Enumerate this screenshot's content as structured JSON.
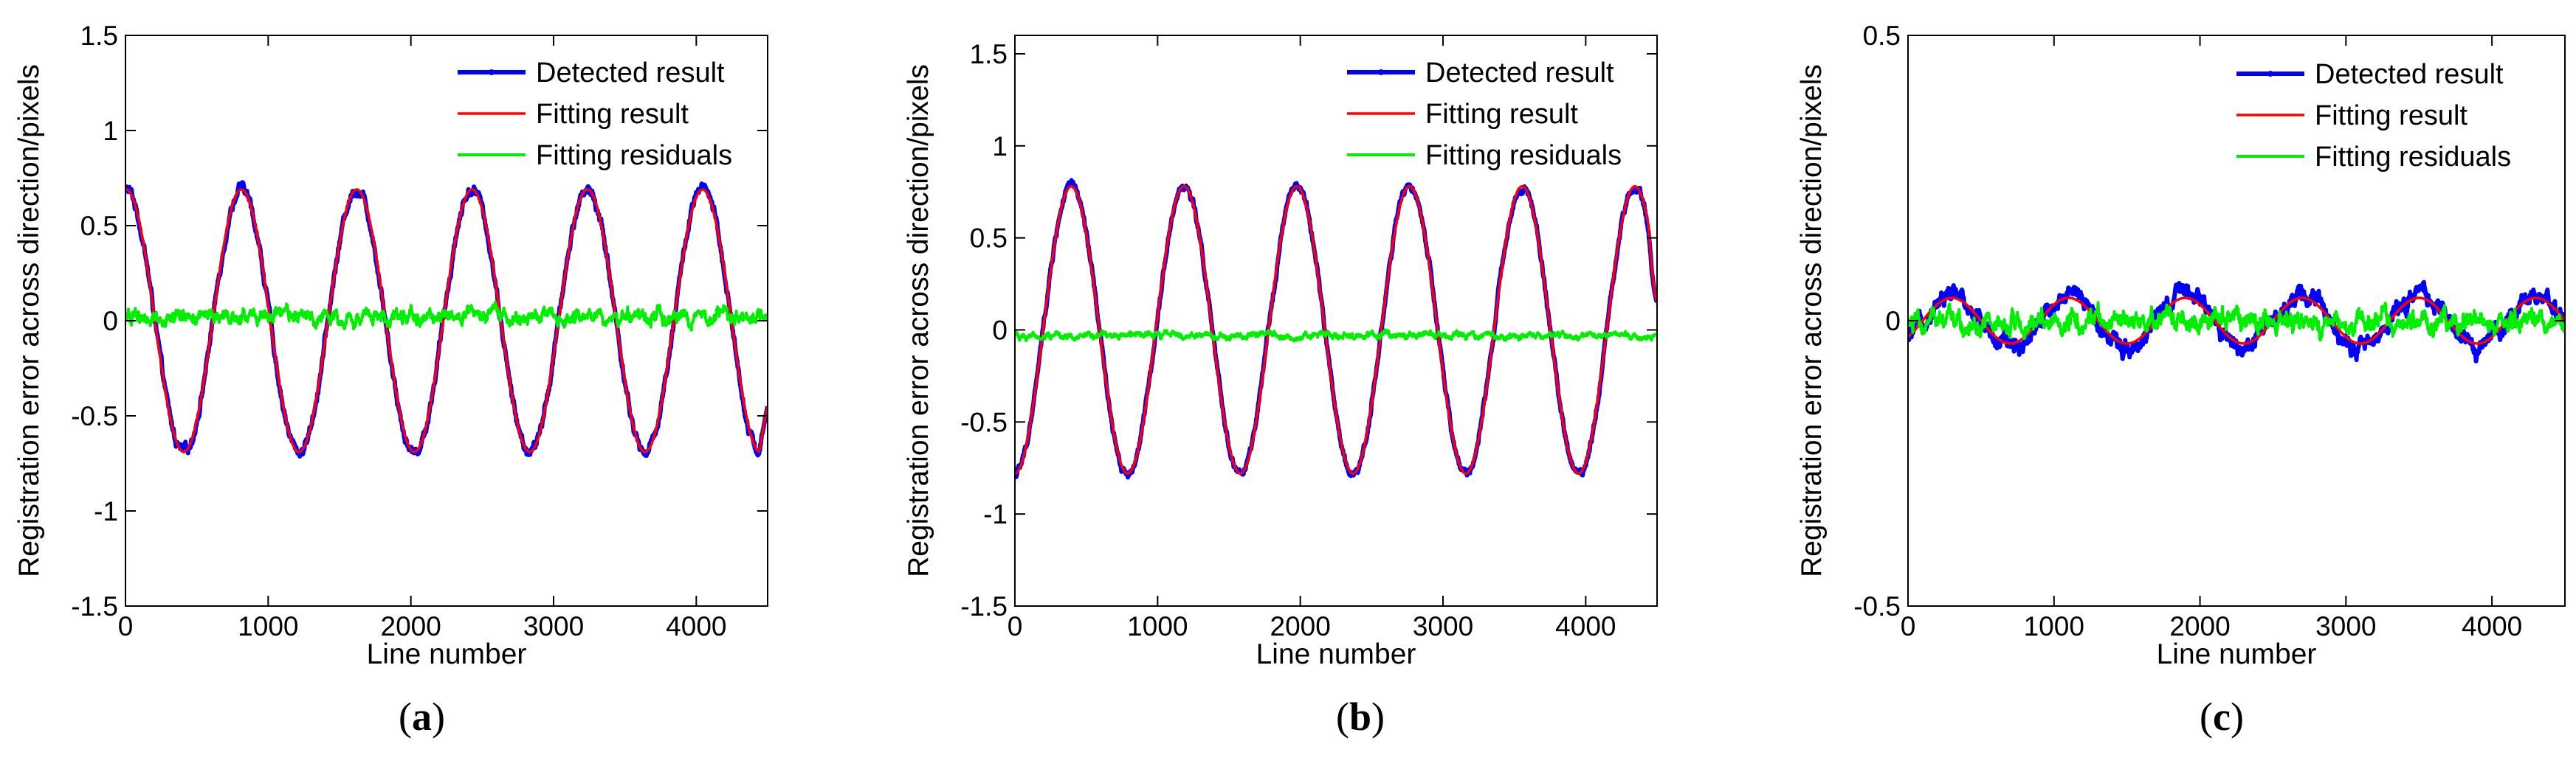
{
  "chart_data": [
    {
      "type": "line",
      "caption_letter": "a",
      "xlabel": "Line number",
      "ylabel": "Registration error across direction/pixels",
      "xlim": [
        0,
        4500
      ],
      "ylim": [
        -1.5,
        1.5
      ],
      "xticks": [
        "0",
        "1000",
        "2000",
        "3000",
        "4000"
      ],
      "xtick_values": [
        0,
        1000,
        2000,
        3000,
        4000
      ],
      "yticks": [
        "-1.5",
        "-1",
        "-0.5",
        "0",
        "0.5",
        "1",
        "1.5"
      ],
      "ytick_values": [
        -1.5,
        -1,
        -0.5,
        0,
        0.5,
        1,
        1.5
      ],
      "legend_position": "top-right",
      "n_points": 4500,
      "series": [
        {
          "name": "Detected result",
          "color": "#0000ff",
          "model": {
            "amplitude": 0.69,
            "period": 808,
            "phase_deg": 88,
            "offset": 0.0,
            "noise": 0.018,
            "end_value": -0.45
          }
        },
        {
          "name": "Fitting result",
          "color": "#ff0000",
          "model": {
            "amplitude": 0.69,
            "period": 808,
            "phase_deg": 88,
            "offset": 0.0,
            "noise": 0.0,
            "end_value": -0.45
          }
        },
        {
          "name": "Fitting residuals",
          "color": "#00ee00",
          "model": {
            "amplitude": 0.0,
            "period": 808,
            "phase_deg": 0,
            "offset": 0.02,
            "noise": 0.025
          }
        }
      ]
    },
    {
      "type": "line",
      "caption_letter": "b",
      "xlabel": "Line number",
      "ylabel": "Registration error across direction/pixels",
      "xlim": [
        0,
        4500
      ],
      "ylim": [
        -1.5,
        1.6
      ],
      "xticks": [
        "0",
        "1000",
        "2000",
        "3000",
        "4000"
      ],
      "xtick_values": [
        0,
        1000,
        2000,
        3000,
        4000
      ],
      "yticks": [
        "-1.5",
        "-1",
        "-0.5",
        "0",
        "0.5",
        "1",
        "1.5"
      ],
      "ytick_values": [
        -1.5,
        -1,
        -0.5,
        0,
        0.5,
        1,
        1.5
      ],
      "legend_position": "top-right",
      "n_points": 4500,
      "series": [
        {
          "name": "Detected result",
          "color": "#0000ff",
          "model": {
            "amplitude": 0.78,
            "period": 790,
            "phase_deg": -90,
            "offset": 0.0,
            "noise": 0.015,
            "end_value": 0.15
          }
        },
        {
          "name": "Fitting result",
          "color": "#ff0000",
          "model": {
            "amplitude": 0.78,
            "period": 790,
            "phase_deg": -90,
            "offset": 0.0,
            "noise": 0.0,
            "end_value": 0.15
          }
        },
        {
          "name": "Fitting residuals",
          "color": "#00ee00",
          "model": {
            "amplitude": 0.0,
            "period": 790,
            "phase_deg": 0,
            "offset": -0.03,
            "noise": 0.012
          }
        }
      ]
    },
    {
      "type": "line",
      "caption_letter": "c",
      "xlabel": "Line number",
      "ylabel": "Registration error across direction/pixels",
      "xlim": [
        0,
        4500
      ],
      "ylim": [
        -0.5,
        0.5
      ],
      "xticks": [
        "0",
        "1000",
        "2000",
        "3000",
        "4000"
      ],
      "xtick_values": [
        0,
        1000,
        2000,
        3000,
        4000
      ],
      "yticks": [
        "-0.5",
        "0",
        "0.5"
      ],
      "ytick_values": [
        -0.5,
        0,
        0.5
      ],
      "legend_position": "top-right",
      "n_points": 4500,
      "series": [
        {
          "name": "Detected result",
          "color": "#0000ff",
          "model": {
            "amplitude": 0.045,
            "period": 800,
            "phase_deg": -45,
            "offset": 0.0,
            "noise": 0.01
          }
        },
        {
          "name": "Fitting result",
          "color": "#ff0000",
          "model": {
            "amplitude": 0.04,
            "period": 800,
            "phase_deg": -45,
            "offset": 0.0,
            "noise": 0.0
          }
        },
        {
          "name": "Fitting residuals",
          "color": "#00ee00",
          "model": {
            "amplitude": 0.0,
            "period": 800,
            "phase_deg": 0,
            "offset": 0.0,
            "noise": 0.012
          }
        }
      ]
    }
  ]
}
